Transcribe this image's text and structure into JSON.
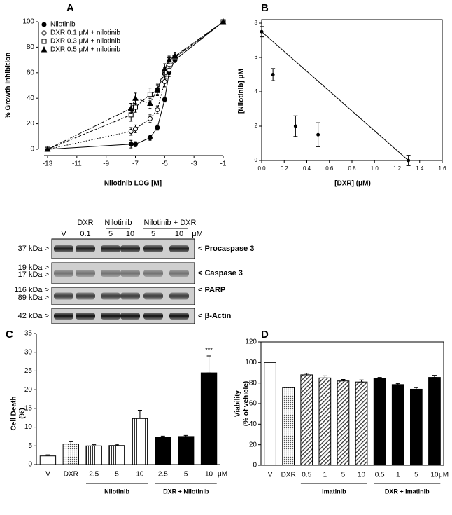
{
  "chart_data": [
    {
      "type": "line",
      "panel": "A",
      "xlabel": "Nilotinib LOG [M]",
      "ylabel": "% Growth Inhibition",
      "x": [
        -13,
        -7.3,
        -7,
        -6,
        -5.5,
        -5,
        -4.7,
        -4.3,
        -1
      ],
      "xlim": [
        -13,
        -1
      ],
      "xticks": [
        -13,
        -11,
        -9,
        -7,
        -5,
        -3,
        -1
      ],
      "ylim": [
        0,
        100
      ],
      "yticks": [
        0,
        20,
        40,
        60,
        80,
        100
      ],
      "legend": "upper-left",
      "series": [
        {
          "name": "Nilotinib",
          "color": "#000000",
          "marker": "filled-circle",
          "linestyle": "solid",
          "values": [
            0,
            4,
            4,
            9,
            17,
            39,
            60,
            70,
            100
          ],
          "errors": [
            0,
            3,
            2,
            2,
            2,
            2,
            3,
            2,
            0
          ]
        },
        {
          "name": "DXR 0.1 μM + nilotinib",
          "color": "#000000",
          "marker": "open-circle",
          "linestyle": "dotted",
          "values": [
            0,
            14,
            16,
            24,
            31,
            53,
            62,
            72,
            100
          ],
          "errors": [
            0,
            3,
            3,
            3,
            3,
            4,
            3,
            2,
            0
          ]
        },
        {
          "name": "DXR 0.3 μM + nilotinib",
          "color": "#000000",
          "marker": "open-square",
          "linestyle": "dashed",
          "values": [
            0,
            27,
            33,
            43,
            46,
            60,
            70,
            72,
            100
          ],
          "errors": [
            0,
            5,
            4,
            5,
            4,
            4,
            3,
            2,
            0
          ]
        },
        {
          "name": "DXR 0.5 μM + nilotinib",
          "color": "#000000",
          "marker": "filled-triangle",
          "linestyle": "dashdot",
          "values": [
            0,
            32,
            40,
            36,
            47,
            63,
            70,
            73,
            100
          ],
          "errors": [
            0,
            4,
            4,
            4,
            4,
            4,
            3,
            3,
            0
          ]
        }
      ]
    },
    {
      "type": "scatter",
      "panel": "B",
      "xlabel": "[DXR] (μM)",
      "ylabel": "[Nilotinib] μM",
      "x": [
        0,
        0.1,
        0.3,
        0.5,
        1.3
      ],
      "values": [
        7.5,
        5.0,
        2.0,
        1.5,
        0
      ],
      "errors": [
        0.3,
        0.35,
        0.6,
        0.7,
        0.3
      ],
      "color": "#000000",
      "xlim": [
        0,
        1.6
      ],
      "xticks": [
        {
          "value": 0,
          "label": "0.0"
        },
        0.2,
        0.4,
        0.6,
        0.8,
        {
          "value": 1,
          "label": "1.0"
        },
        1.2,
        1.4,
        1.6
      ],
      "ylim": [
        0,
        8
      ],
      "yticks": [
        0,
        2,
        4,
        6,
        8
      ]
    },
    {
      "type": "bar",
      "panel": "C",
      "ylabel": [
        "Cell Death",
        "(%)"
      ],
      "categories": [
        "V",
        "DXR",
        "2.5",
        "5",
        "10",
        "2.5",
        "5",
        "10"
      ],
      "unit_label": "μM",
      "group_labels": [
        "Nilotinib",
        "DXR + Nilotinib"
      ],
      "values": [
        2.3,
        5.5,
        5.0,
        5.1,
        12.3,
        7.3,
        7.5,
        24.5
      ],
      "errors": [
        0.3,
        0.6,
        0.3,
        0.3,
        2.2,
        0.3,
        0.3,
        4.5
      ],
      "bar_patterns": [
        "white",
        "dots",
        "vstripes",
        "vstripes",
        "vstripes",
        "black",
        "black",
        "black"
      ],
      "annotation": "***",
      "ylim": [
        0,
        35
      ],
      "yticks": [
        0,
        5,
        10,
        15,
        20,
        25,
        30,
        35
      ]
    },
    {
      "type": "bar",
      "panel": "D",
      "ylabel": [
        "Viability",
        "(% of vehicle)"
      ],
      "categories": [
        "V",
        "DXR",
        "0.5",
        "1",
        "5",
        "10",
        "0.5",
        "1",
        "5",
        "10"
      ],
      "unit_label": "μM",
      "group_labels": [
        "Imatinib",
        "DXR + Imatinib"
      ],
      "values": [
        100,
        75.5,
        88,
        85,
        82,
        81,
        84.5,
        78.5,
        74,
        85.5
      ],
      "errors": [
        0,
        0.5,
        1.5,
        2,
        1.5,
        2,
        1,
        1,
        1.5,
        2
      ],
      "bar_patterns": [
        "white",
        "dots",
        "hatch",
        "hatch",
        "hatch",
        "hatch",
        "black",
        "black",
        "black",
        "black"
      ],
      "ylim": [
        0,
        120
      ],
      "yticks": [
        0,
        20,
        40,
        60,
        80,
        100,
        120
      ]
    }
  ],
  "blot": {
    "header": [
      "V",
      "DXR",
      "0.1",
      "Nilotinib",
      "5",
      "10",
      "Nilotinib + DXR",
      "5",
      "10",
      "μM"
    ],
    "left_labels": [
      "37 kDa >",
      "19 kDa >",
      "17 kDa >",
      "116 kDa >",
      "89 kDa >",
      "42 kDa >"
    ],
    "right_labels": [
      "< Procaspase 3",
      "< Caspase 3",
      "< PARP",
      "< β-Actin"
    ]
  }
}
